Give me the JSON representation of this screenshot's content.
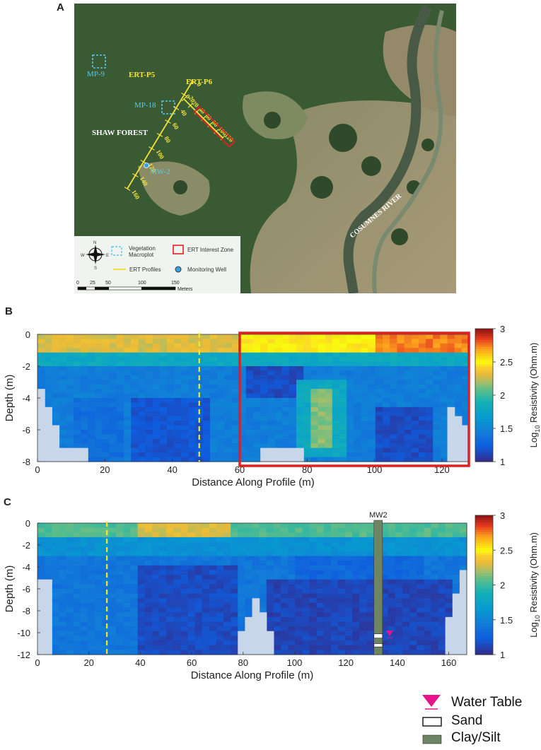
{
  "panels": {
    "a": "A",
    "b": "B",
    "c": "C"
  },
  "map": {
    "labels": {
      "mp9": "MP-9",
      "mp18": "MP-18",
      "mw2": "MW-2",
      "ertp5": "ERT-P5",
      "ertp6": "ERT-P6",
      "forest": "SHAW FOREST",
      "river": "COSUMNES RIVER"
    },
    "p5_ticks": [
      "0",
      "20",
      "40",
      "60",
      "80",
      "100",
      "120",
      "140",
      "160"
    ],
    "p6_ticks": [
      "0",
      "20",
      "40",
      "60",
      "80",
      "100",
      "120"
    ],
    "legend": {
      "veg": [
        "Vegetation",
        "Macroplot"
      ],
      "ert_zone": "ERT Interest Zone",
      "ert_profiles": "ERT Profiles",
      "well": "Monitoring Well",
      "compass": [
        "N",
        "E",
        "S",
        "W"
      ],
      "scale_ticks": [
        "0",
        "25",
        "50",
        "100",
        "150"
      ],
      "scale_unit": "Meters"
    },
    "colors": {
      "vegetation": "#5bc8e8",
      "profile": "#f2e23a",
      "interest": "#e02020",
      "well": "#3aa0e0"
    }
  },
  "chart_data": [
    {
      "type": "heatmap",
      "panel": "B",
      "xlabel": "Distance Along Profile (m)",
      "ylabel": "Depth (m)",
      "xlim": [
        0,
        128
      ],
      "ylim": [
        -8,
        0
      ],
      "x_ticks": [
        0,
        20,
        40,
        60,
        80,
        100,
        120
      ],
      "y_ticks": [
        0,
        -2,
        -4,
        -6,
        -8
      ],
      "dashed_line_x": 48,
      "interest_box": {
        "x": [
          60,
          128
        ],
        "y": [
          -8,
          0
        ]
      },
      "colorbar": {
        "label": "Log10 Resistivity (Ohm.m)",
        "label_main": "Log",
        "label_sub": "10",
        "label_rest": " Resistivity (Ohm.m)",
        "min": 1,
        "max": 3,
        "ticks": [
          1,
          1.5,
          2,
          2.5,
          3
        ]
      },
      "features": [
        {
          "kind": "high_resistivity_lens",
          "x": [
            80,
            88
          ],
          "y": [
            -7.2,
            -3.4
          ],
          "log10_resistivity": 2.0
        },
        {
          "kind": "near_surface_high",
          "x": [
            100,
            127
          ],
          "y": [
            -1.5,
            0
          ],
          "log10_resistivity": 2.6
        }
      ]
    },
    {
      "type": "heatmap",
      "panel": "C",
      "xlabel": "Distance Along Profile (m)",
      "ylabel": "Depth (m)",
      "xlim": [
        0,
        167
      ],
      "ylim": [
        -12,
        0
      ],
      "x_ticks": [
        0,
        20,
        40,
        60,
        80,
        100,
        120,
        140,
        160
      ],
      "y_ticks": [
        0,
        -2,
        -4,
        -6,
        -8,
        -10,
        -12
      ],
      "dashed_line_x": 27,
      "well": {
        "label": "MW2",
        "x": 132,
        "sand_depths": [
          [
            -10.1,
            -10.5
          ],
          [
            -11.0,
            -11.3
          ]
        ]
      },
      "water_table": {
        "x": 137,
        "depth": -10.2
      },
      "colorbar": {
        "label": "Log10 Resistivity (Ohm.m)",
        "label_main": "Log",
        "label_sub": "10",
        "label_rest": " Resistivity (Ohm.m)",
        "min": 1,
        "max": 3,
        "ticks": [
          1,
          1.5,
          2,
          2.5,
          3
        ]
      }
    }
  ],
  "legend": {
    "water_table": "Water Table",
    "sand": "Sand",
    "clay": "Clay/Silt",
    "colors": {
      "water_table": "#e8158a",
      "clay": "#6e8563",
      "sand": "#ffffff"
    }
  }
}
